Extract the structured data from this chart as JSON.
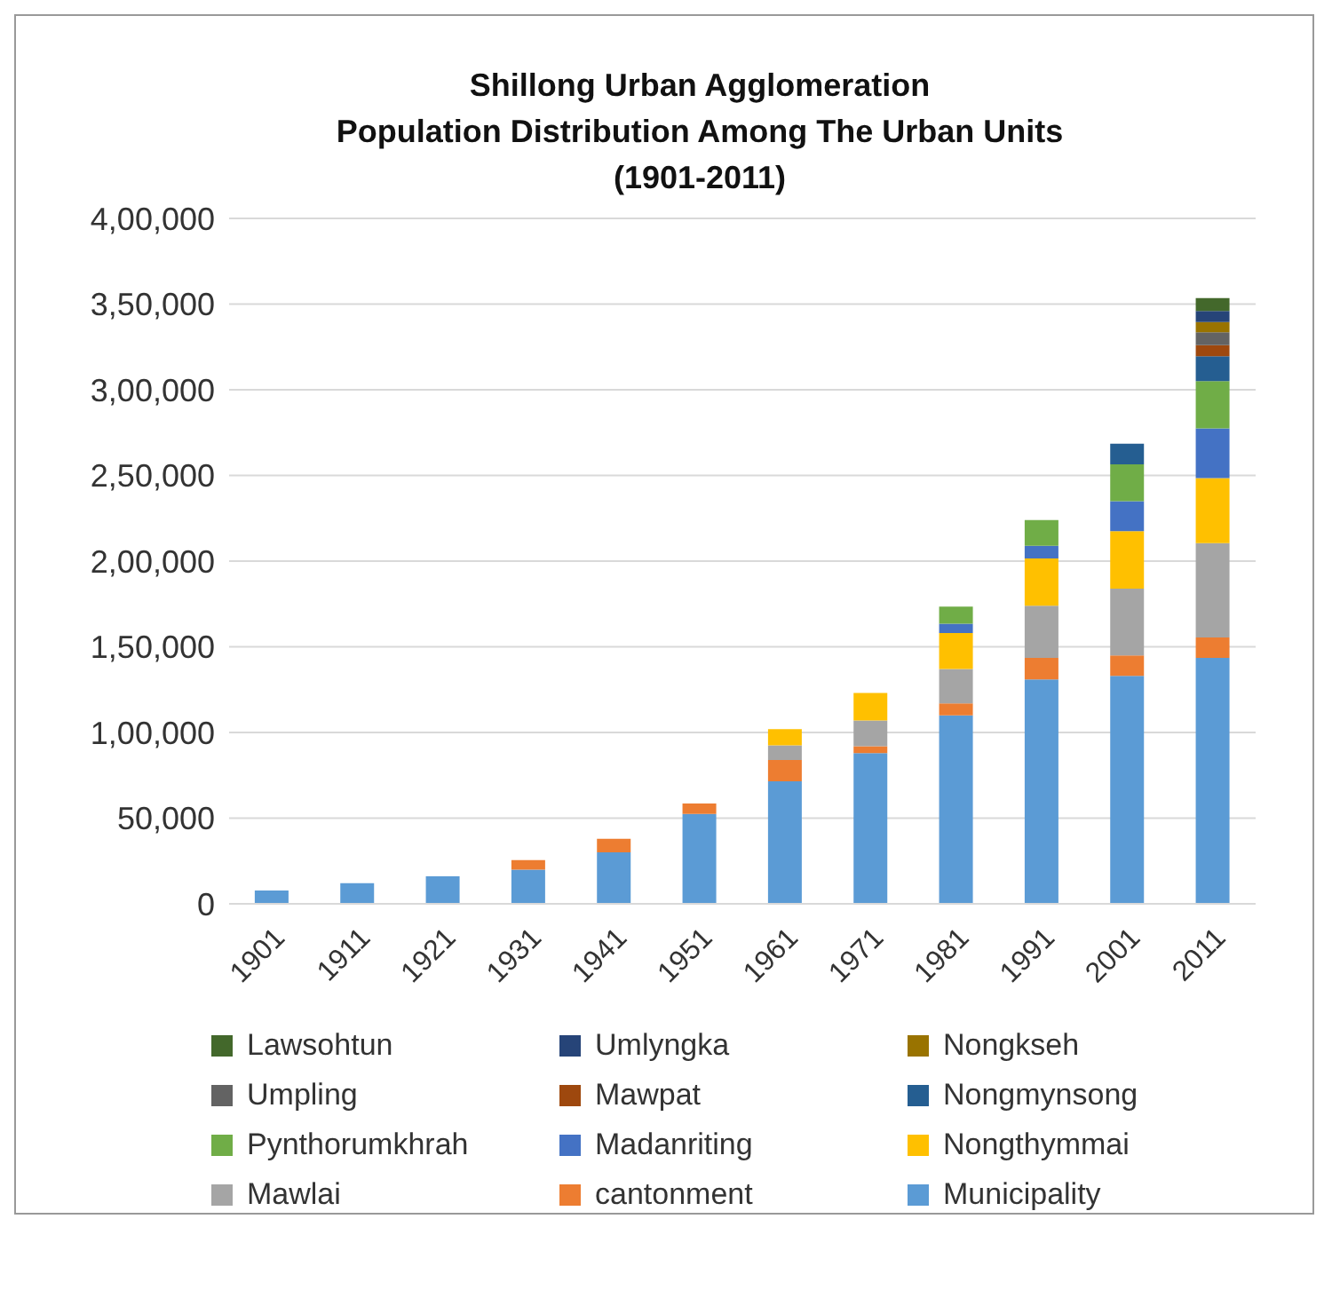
{
  "chart_data": {
    "type": "bar",
    "stacked": true,
    "title": "Shillong Urban Agglomeration\nPopulation Distribution Among The Urban Units\n(1901-2011)",
    "categories": [
      "1901",
      "1911",
      "1921",
      "1931",
      "1941",
      "1951",
      "1961",
      "1971",
      "1981",
      "1991",
      "2001",
      "2011"
    ],
    "series": [
      {
        "name": "Municipality",
        "color": "#5b9bd5",
        "values": [
          7800,
          12000,
          16000,
          20000,
          30000,
          52500,
          71500,
          88000,
          110000,
          131000,
          133000,
          143500
        ]
      },
      {
        "name": "cantonment",
        "color": "#ed7d31",
        "values": [
          null,
          null,
          null,
          5500,
          8000,
          6000,
          12500,
          4000,
          7000,
          12500,
          12000,
          12000
        ]
      },
      {
        "name": "Mawlai",
        "color": "#a5a5a5",
        "values": [
          null,
          null,
          null,
          null,
          null,
          null,
          8500,
          15000,
          20000,
          30500,
          39000,
          55000
        ]
      },
      {
        "name": "Nongthymmai",
        "color": "#ffc000",
        "values": [
          null,
          null,
          null,
          null,
          null,
          null,
          9500,
          16000,
          21000,
          27500,
          33500,
          38000
        ]
      },
      {
        "name": "Madanriting",
        "color": "#4472c4",
        "values": [
          null,
          null,
          null,
          null,
          null,
          null,
          null,
          null,
          5500,
          7500,
          17500,
          29000
        ]
      },
      {
        "name": "Pynthorumkhrah",
        "color": "#70ad47",
        "values": [
          null,
          null,
          null,
          null,
          null,
          null,
          null,
          null,
          10000,
          15000,
          21500,
          27500
        ]
      },
      {
        "name": "Nongmynsong",
        "color": "#255e91",
        "values": [
          null,
          null,
          null,
          null,
          null,
          null,
          null,
          null,
          null,
          null,
          12000,
          14500
        ]
      },
      {
        "name": "Mawpat",
        "color": "#9e480e",
        "values": [
          null,
          null,
          null,
          null,
          null,
          null,
          null,
          null,
          null,
          null,
          null,
          6500
        ]
      },
      {
        "name": "Umpling",
        "color": "#636363",
        "values": [
          null,
          null,
          null,
          null,
          null,
          null,
          null,
          null,
          null,
          null,
          null,
          7500
        ]
      },
      {
        "name": "Nongkseh",
        "color": "#997300",
        "values": [
          null,
          null,
          null,
          null,
          null,
          null,
          null,
          null,
          null,
          null,
          null,
          6000
        ]
      },
      {
        "name": "Umlyngka",
        "color": "#264478",
        "values": [
          null,
          null,
          null,
          null,
          null,
          null,
          null,
          null,
          null,
          null,
          null,
          6500
        ]
      },
      {
        "name": "Lawsohtun",
        "color": "#43682b",
        "values": [
          null,
          null,
          null,
          null,
          null,
          null,
          null,
          null,
          null,
          null,
          null,
          7500
        ]
      }
    ],
    "ylim": [
      0,
      400000
    ],
    "yticks": [
      0,
      {
        "value": 50000,
        "label": "50,000"
      },
      {
        "value": 100000,
        "label": "1,00,000"
      },
      {
        "value": 150000,
        "label": "1,50,000"
      },
      {
        "value": 200000,
        "label": "2,00,000"
      },
      {
        "value": 250000,
        "label": "2,50,000"
      },
      {
        "value": 300000,
        "label": "3,00,000"
      },
      {
        "value": 350000,
        "label": "3,50,000"
      },
      {
        "value": 400000,
        "label": "4,00,000"
      }
    ],
    "grid": "y",
    "legend": "bottom"
  }
}
